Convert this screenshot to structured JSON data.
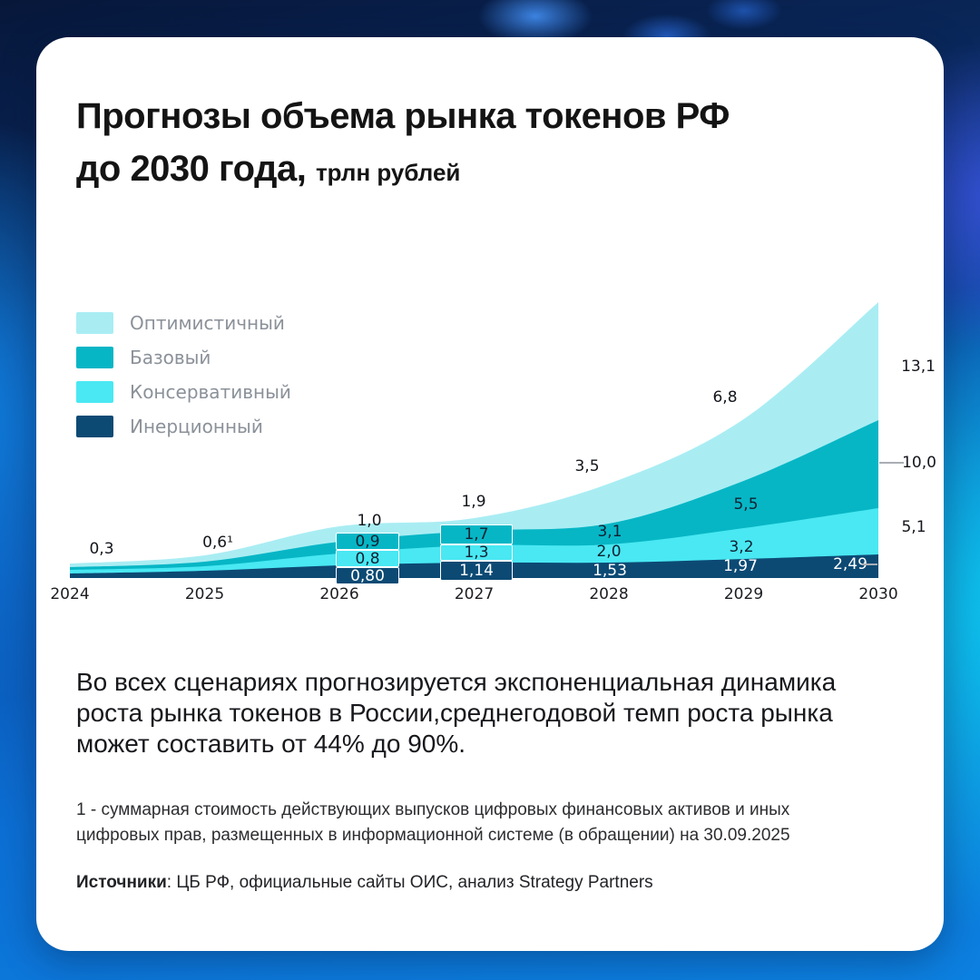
{
  "title": {
    "line1": "Прогнозы объема рынка токенов РФ",
    "line2": "до 2030 года,",
    "unit": "трлн рублей"
  },
  "legend": {
    "items": [
      {
        "label": "Оптимистичный",
        "color": "#a9edf3"
      },
      {
        "label": "Базовый",
        "color": "#07b6c5"
      },
      {
        "label": "Консервативный",
        "color": "#49e8f2"
      },
      {
        "label": "Инерционный",
        "color": "#0c4a74"
      }
    ]
  },
  "chart_data": {
    "type": "area",
    "title": "Прогнозы объема рынка токенов РФ до 2030 года",
    "ylabel": "трлн рублей",
    "xlabel": "",
    "grid": false,
    "legend_position": "top-left",
    "categories": [
      "2024",
      "2025",
      "2026",
      "2027",
      "2028",
      "2029",
      "2030"
    ],
    "series": [
      {
        "name": "Оптимистичный",
        "color": "#a9edf3",
        "values": [
          0.3,
          0.6,
          1.0,
          1.9,
          3.5,
          6.8,
          13.1
        ]
      },
      {
        "name": "Базовый",
        "color": "#07b6c5",
        "values": [
          0.3,
          0.6,
          0.9,
          1.7,
          3.1,
          5.5,
          10.0
        ]
      },
      {
        "name": "Консервативный",
        "color": "#49e8f2",
        "values": [
          0.3,
          0.6,
          0.8,
          1.3,
          2.0,
          3.2,
          5.1
        ]
      },
      {
        "name": "Инерционный",
        "color": "#0c4a74",
        "values": [
          0.3,
          0.6,
          0.8,
          1.14,
          1.53,
          1.97,
          2.49
        ]
      }
    ],
    "point_labels": {
      "shared": {
        "2024": "0,3",
        "2025": "0,6¹"
      },
      "optimistic": {
        "2026": "1,0",
        "2027": "1,9",
        "2028": "3,5",
        "2029": "6,8",
        "2030": "13,1"
      },
      "base": {
        "2026": "0,9",
        "2027": "1,7",
        "2028": "3,1",
        "2029": "5,5",
        "2030": "10,0"
      },
      "conservative": {
        "2026": "0,8",
        "2027": "1,3",
        "2028": "2,0",
        "2029": "3,2",
        "2030": "5,1"
      },
      "inertial": {
        "2026": "0,80",
        "2027": "1,14",
        "2028": "1,53",
        "2029": "1,97",
        "2030": "2,49"
      }
    }
  },
  "summary": {
    "text": "Во всех сценариях прогнозируется экспоненциальная динамика\nроста рынка токенов в России,среднегодовой темп роста рынка\nможет составить от 44% до 90%."
  },
  "footnote": {
    "text": "1 - суммарная стоимость действующих выпусков цифровых финансовых активов и иных\nцифровых прав, размещенных в информационной системе (в обращении) на 30.09.2025"
  },
  "sources": {
    "label": "Источники",
    "text": ": ЦБ РФ, официальные сайты ОИС, анализ Strategy Partners"
  }
}
